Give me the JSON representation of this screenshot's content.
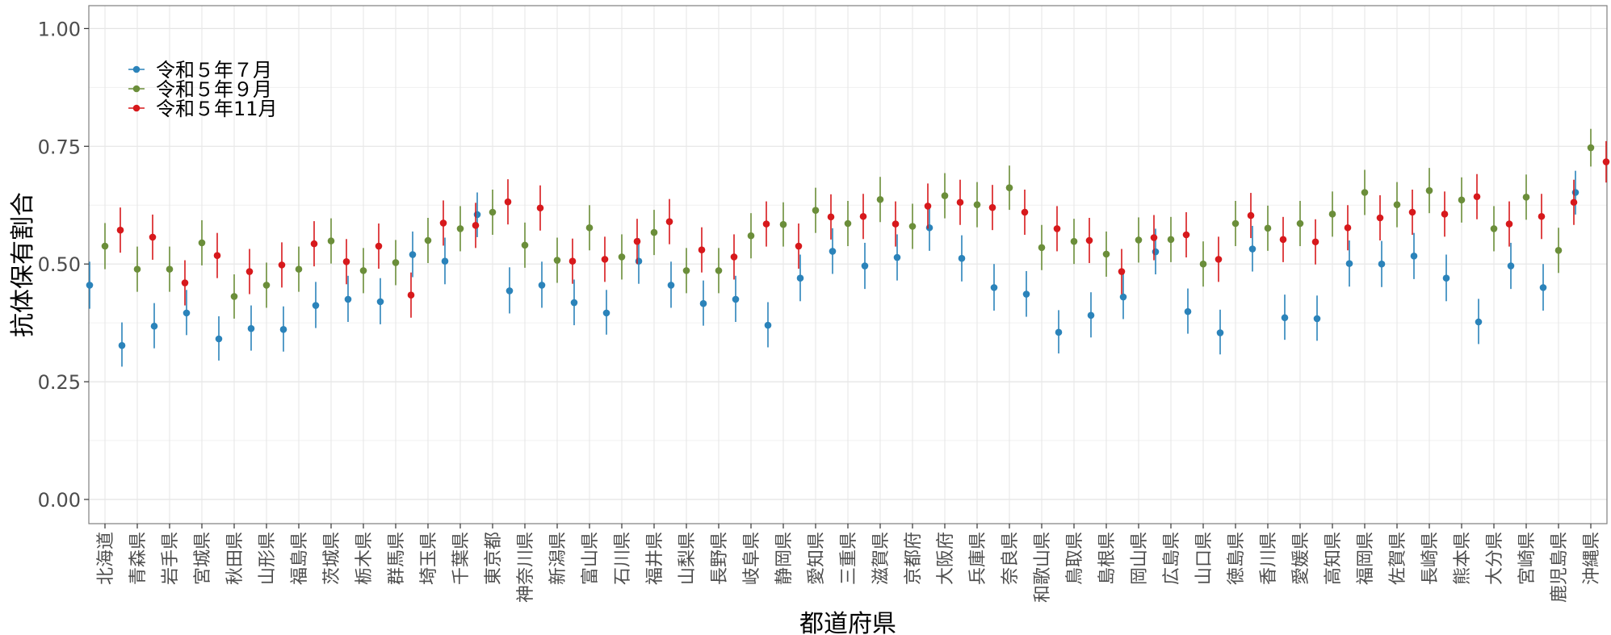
{
  "chart_data": {
    "type": "scatter",
    "xlabel": "都道府県",
    "ylabel": "抗体保有割合",
    "ylim": [
      0,
      1.05
    ],
    "yticks": [
      "0.00",
      "0.25",
      "0.50",
      "0.75",
      "1.00"
    ],
    "grid": true,
    "legend_position": "top-left",
    "categories": [
      "北海道",
      "青森県",
      "岩手県",
      "宮城県",
      "秋田県",
      "山形県",
      "福島県",
      "茨城県",
      "栃木県",
      "群馬県",
      "埼玉県",
      "千葉県",
      "東京都",
      "神奈川県",
      "新潟県",
      "富山県",
      "石川県",
      "福井県",
      "山梨県",
      "長野県",
      "岐阜県",
      "静岡県",
      "愛知県",
      "三重県",
      "滋賀県",
      "京都府",
      "大阪府",
      "兵庫県",
      "奈良県",
      "和歌山県",
      "鳥取県",
      "島根県",
      "岡山県",
      "広島県",
      "山口県",
      "徳島県",
      "香川県",
      "愛媛県",
      "高知県",
      "福岡県",
      "佐賀県",
      "長崎県",
      "熊本県",
      "大分県",
      "宮崎県",
      "鹿児島県",
      "沖縄県"
    ],
    "series": [
      {
        "name": "令和５年７月",
        "color": "#2b83ba",
        "values": [
          0.455,
          0.327,
          0.368,
          0.396,
          0.341,
          0.363,
          0.361,
          0.412,
          0.425,
          0.42,
          0.52,
          0.506,
          0.605,
          0.443,
          0.455,
          0.418,
          0.396,
          0.506,
          0.455,
          0.416,
          0.425,
          0.37,
          0.47,
          0.527,
          0.496,
          0.514,
          0.577,
          0.512,
          0.45,
          0.436,
          0.355,
          0.391,
          0.43,
          0.526,
          0.399,
          0.354,
          0.532,
          0.386,
          0.384,
          0.501,
          0.5,
          0.517,
          0.47,
          0.377,
          0.496,
          0.45,
          0.652
        ],
        "lower": [
          0.405,
          0.282,
          0.321,
          0.349,
          0.295,
          0.316,
          0.314,
          0.364,
          0.377,
          0.372,
          0.472,
          0.457,
          0.557,
          0.395,
          0.407,
          0.37,
          0.35,
          0.458,
          0.407,
          0.369,
          0.377,
          0.323,
          0.421,
          0.479,
          0.447,
          0.465,
          0.528,
          0.463,
          0.401,
          0.388,
          0.31,
          0.344,
          0.383,
          0.478,
          0.352,
          0.308,
          0.484,
          0.339,
          0.337,
          0.452,
          0.451,
          0.468,
          0.421,
          0.33,
          0.447,
          0.401,
          0.605
        ],
        "upper": [
          0.505,
          0.376,
          0.417,
          0.445,
          0.389,
          0.412,
          0.41,
          0.462,
          0.475,
          0.47,
          0.569,
          0.556,
          0.652,
          0.493,
          0.505,
          0.467,
          0.445,
          0.555,
          0.505,
          0.465,
          0.475,
          0.419,
          0.52,
          0.576,
          0.545,
          0.563,
          0.626,
          0.561,
          0.5,
          0.485,
          0.402,
          0.44,
          0.479,
          0.575,
          0.448,
          0.403,
          0.581,
          0.435,
          0.433,
          0.55,
          0.549,
          0.566,
          0.52,
          0.426,
          0.545,
          0.5,
          0.698
        ]
      },
      {
        "name": "令和５年９月",
        "color": "#6b8e3a",
        "values": [
          0.538,
          0.489,
          0.489,
          0.545,
          0.431,
          0.455,
          0.489,
          0.549,
          0.486,
          0.503,
          0.55,
          0.575,
          0.61,
          0.54,
          0.508,
          0.577,
          0.515,
          0.567,
          0.486,
          0.486,
          0.56,
          0.584,
          0.614,
          0.586,
          0.637,
          0.58,
          0.645,
          0.626,
          0.662,
          0.535,
          0.548,
          0.521,
          0.551,
          0.552,
          0.5,
          0.586,
          0.576,
          0.586,
          0.606,
          0.652,
          0.626,
          0.656,
          0.636,
          0.575,
          0.642,
          0.529,
          0.747
        ],
        "lower": [
          0.489,
          0.441,
          0.441,
          0.497,
          0.384,
          0.407,
          0.441,
          0.501,
          0.438,
          0.455,
          0.502,
          0.527,
          0.562,
          0.492,
          0.46,
          0.529,
          0.467,
          0.519,
          0.438,
          0.438,
          0.512,
          0.537,
          0.566,
          0.538,
          0.589,
          0.532,
          0.597,
          0.578,
          0.615,
          0.487,
          0.5,
          0.473,
          0.503,
          0.504,
          0.452,
          0.538,
          0.528,
          0.538,
          0.558,
          0.604,
          0.578,
          0.608,
          0.588,
          0.527,
          0.594,
          0.481,
          0.707
        ],
        "upper": [
          0.587,
          0.537,
          0.537,
          0.593,
          0.478,
          0.503,
          0.537,
          0.597,
          0.534,
          0.551,
          0.598,
          0.623,
          0.658,
          0.588,
          0.556,
          0.625,
          0.563,
          0.615,
          0.534,
          0.534,
          0.608,
          0.631,
          0.662,
          0.634,
          0.685,
          0.628,
          0.693,
          0.674,
          0.709,
          0.583,
          0.596,
          0.569,
          0.599,
          0.6,
          0.548,
          0.634,
          0.624,
          0.634,
          0.654,
          0.7,
          0.674,
          0.704,
          0.684,
          0.623,
          0.69,
          0.577,
          0.787
        ]
      },
      {
        "name": "令和５年11月",
        "color": "#d7191c",
        "values": [
          0.572,
          0.557,
          0.46,
          0.518,
          0.484,
          0.498,
          0.543,
          0.505,
          0.538,
          0.434,
          0.587,
          0.582,
          0.632,
          0.619,
          0.506,
          0.51,
          0.548,
          0.59,
          0.53,
          0.515,
          0.585,
          0.538,
          0.6,
          0.601,
          0.585,
          0.623,
          0.631,
          0.62,
          0.61,
          0.575,
          0.55,
          0.484,
          0.556,
          0.562,
          0.51,
          0.603,
          0.552,
          0.547,
          0.577,
          0.598,
          0.61,
          0.606,
          0.643,
          0.585,
          0.601,
          0.631,
          0.717
        ],
        "lower": [
          0.524,
          0.509,
          0.412,
          0.47,
          0.436,
          0.45,
          0.495,
          0.457,
          0.49,
          0.386,
          0.539,
          0.534,
          0.584,
          0.571,
          0.458,
          0.462,
          0.5,
          0.542,
          0.482,
          0.467,
          0.537,
          0.49,
          0.552,
          0.553,
          0.537,
          0.575,
          0.583,
          0.572,
          0.562,
          0.527,
          0.502,
          0.436,
          0.508,
          0.514,
          0.462,
          0.555,
          0.504,
          0.499,
          0.529,
          0.55,
          0.562,
          0.558,
          0.595,
          0.537,
          0.553,
          0.583,
          0.673
        ],
        "upper": [
          0.62,
          0.605,
          0.508,
          0.566,
          0.532,
          0.546,
          0.591,
          0.553,
          0.586,
          0.482,
          0.635,
          0.63,
          0.68,
          0.667,
          0.554,
          0.558,
          0.596,
          0.638,
          0.578,
          0.563,
          0.633,
          0.586,
          0.648,
          0.649,
          0.633,
          0.671,
          0.679,
          0.668,
          0.658,
          0.623,
          0.598,
          0.532,
          0.604,
          0.61,
          0.558,
          0.651,
          0.6,
          0.595,
          0.625,
          0.646,
          0.658,
          0.654,
          0.691,
          0.633,
          0.649,
          0.679,
          0.761
        ]
      }
    ]
  }
}
